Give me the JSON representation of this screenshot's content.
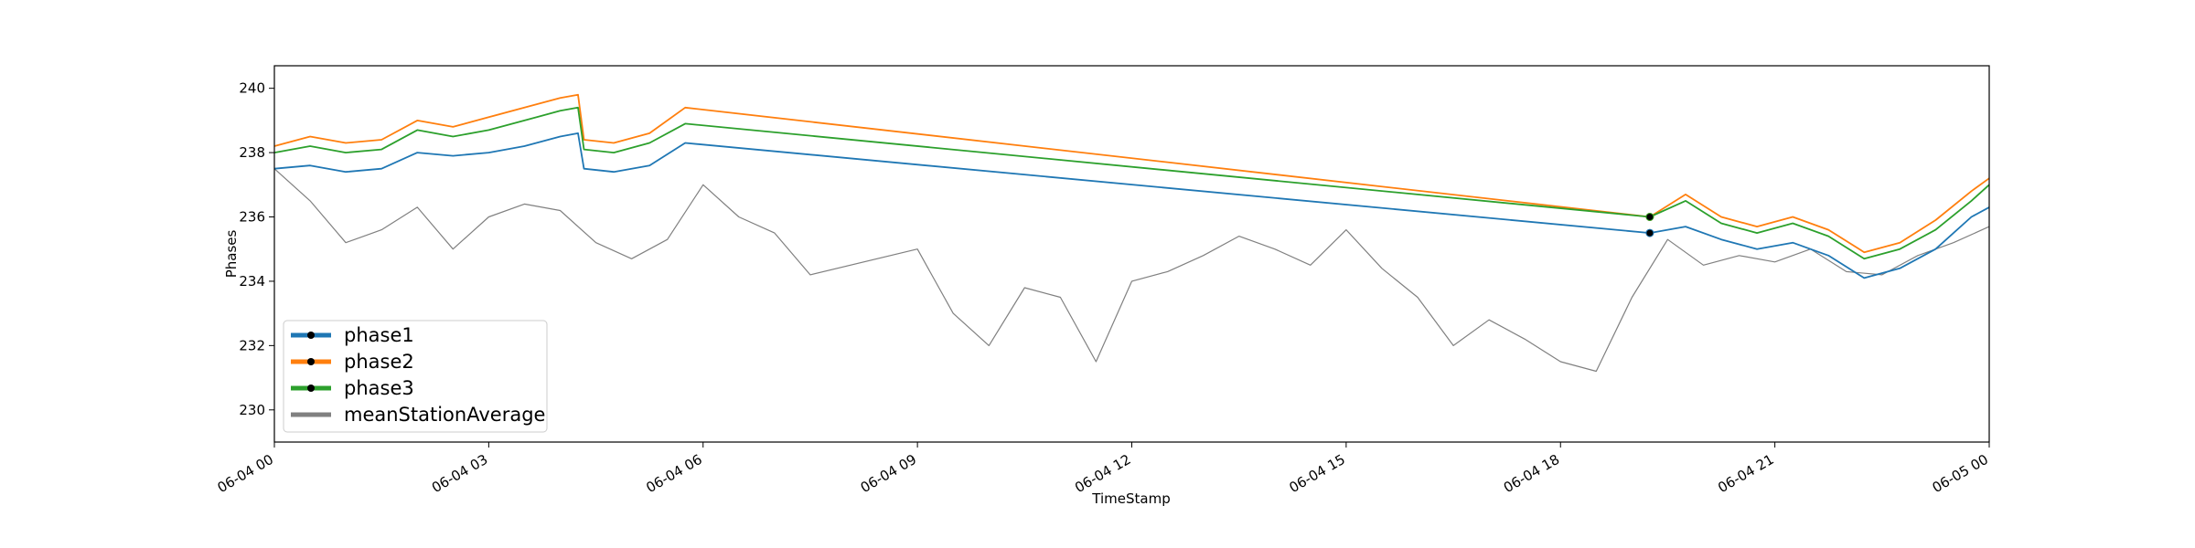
{
  "chart_data": {
    "type": "line",
    "xlabel": "TimeStamp",
    "ylabel": "Phases",
    "xlim": [
      "2024-06-04T00:00",
      "2024-06-05T00:00"
    ],
    "ylim": [
      229.0,
      240.7
    ],
    "x_ticks": [
      {
        "t": "2024-06-04T00:00",
        "label": "06-04 00"
      },
      {
        "t": "2024-06-04T03:00",
        "label": "06-04 03"
      },
      {
        "t": "2024-06-04T06:00",
        "label": "06-04 06"
      },
      {
        "t": "2024-06-04T09:00",
        "label": "06-04 09"
      },
      {
        "t": "2024-06-04T12:00",
        "label": "06-04 12"
      },
      {
        "t": "2024-06-04T15:00",
        "label": "06-04 15"
      },
      {
        "t": "2024-06-04T18:00",
        "label": "06-04 18"
      },
      {
        "t": "2024-06-04T21:00",
        "label": "06-04 21"
      },
      {
        "t": "2024-06-05T00:00",
        "label": "06-05 00"
      }
    ],
    "y_ticks": [
      230,
      232,
      234,
      236,
      238,
      240
    ],
    "legend": {
      "position": "lower-left"
    },
    "series": [
      {
        "name": "phase1",
        "color": "#1f77b4",
        "marker": true,
        "points": [
          [
            "2024-06-04T00:00",
            237.5
          ],
          [
            "2024-06-04T00:30",
            237.6
          ],
          [
            "2024-06-04T01:00",
            237.4
          ],
          [
            "2024-06-04T01:30",
            237.5
          ],
          [
            "2024-06-04T02:00",
            238.0
          ],
          [
            "2024-06-04T02:30",
            237.9
          ],
          [
            "2024-06-04T03:00",
            238.0
          ],
          [
            "2024-06-04T03:30",
            238.2
          ],
          [
            "2024-06-04T04:00",
            238.5
          ],
          [
            "2024-06-04T04:15",
            238.6
          ],
          [
            "2024-06-04T04:20",
            237.5
          ],
          [
            "2024-06-04T04:45",
            237.4
          ],
          [
            "2024-06-04T05:15",
            237.6
          ],
          [
            "2024-06-04T05:45",
            238.3
          ],
          [
            "2024-06-04T19:15",
            235.5
          ],
          [
            "2024-06-04T19:45",
            235.7
          ],
          [
            "2024-06-04T20:15",
            235.3
          ],
          [
            "2024-06-04T20:45",
            235.0
          ],
          [
            "2024-06-04T21:15",
            235.2
          ],
          [
            "2024-06-04T21:45",
            234.8
          ],
          [
            "2024-06-04T22:15",
            234.1
          ],
          [
            "2024-06-04T22:45",
            234.4
          ],
          [
            "2024-06-04T23:15",
            235.0
          ],
          [
            "2024-06-04T23:45",
            236.0
          ],
          [
            "2024-06-05T00:00",
            236.3
          ]
        ]
      },
      {
        "name": "phase2",
        "color": "#ff7f0e",
        "marker": true,
        "points": [
          [
            "2024-06-04T00:00",
            238.2
          ],
          [
            "2024-06-04T00:30",
            238.5
          ],
          [
            "2024-06-04T01:00",
            238.3
          ],
          [
            "2024-06-04T01:30",
            238.4
          ],
          [
            "2024-06-04T02:00",
            239.0
          ],
          [
            "2024-06-04T02:30",
            238.8
          ],
          [
            "2024-06-04T03:00",
            239.1
          ],
          [
            "2024-06-04T03:30",
            239.4
          ],
          [
            "2024-06-04T04:00",
            239.7
          ],
          [
            "2024-06-04T04:15",
            239.8
          ],
          [
            "2024-06-04T04:20",
            238.4
          ],
          [
            "2024-06-04T04:45",
            238.3
          ],
          [
            "2024-06-04T05:15",
            238.6
          ],
          [
            "2024-06-04T05:45",
            239.4
          ],
          [
            "2024-06-04T19:15",
            236.0
          ],
          [
            "2024-06-04T19:45",
            236.7
          ],
          [
            "2024-06-04T20:15",
            236.0
          ],
          [
            "2024-06-04T20:45",
            235.7
          ],
          [
            "2024-06-04T21:15",
            236.0
          ],
          [
            "2024-06-04T21:45",
            235.6
          ],
          [
            "2024-06-04T22:15",
            234.9
          ],
          [
            "2024-06-04T22:45",
            235.2
          ],
          [
            "2024-06-04T23:15",
            235.9
          ],
          [
            "2024-06-04T23:45",
            236.8
          ],
          [
            "2024-06-05T00:00",
            237.2
          ]
        ]
      },
      {
        "name": "phase3",
        "color": "#2ca02c",
        "marker": true,
        "points": [
          [
            "2024-06-04T00:00",
            238.0
          ],
          [
            "2024-06-04T00:30",
            238.2
          ],
          [
            "2024-06-04T01:00",
            238.0
          ],
          [
            "2024-06-04T01:30",
            238.1
          ],
          [
            "2024-06-04T02:00",
            238.7
          ],
          [
            "2024-06-04T02:30",
            238.5
          ],
          [
            "2024-06-04T03:00",
            238.7
          ],
          [
            "2024-06-04T03:30",
            239.0
          ],
          [
            "2024-06-04T04:00",
            239.3
          ],
          [
            "2024-06-04T04:15",
            239.4
          ],
          [
            "2024-06-04T04:20",
            238.1
          ],
          [
            "2024-06-04T04:45",
            238.0
          ],
          [
            "2024-06-04T05:15",
            238.3
          ],
          [
            "2024-06-04T05:45",
            238.9
          ],
          [
            "2024-06-04T19:15",
            236.0
          ],
          [
            "2024-06-04T19:45",
            236.5
          ],
          [
            "2024-06-04T20:15",
            235.8
          ],
          [
            "2024-06-04T20:45",
            235.5
          ],
          [
            "2024-06-04T21:15",
            235.8
          ],
          [
            "2024-06-04T21:45",
            235.4
          ],
          [
            "2024-06-04T22:15",
            234.7
          ],
          [
            "2024-06-04T22:45",
            235.0
          ],
          [
            "2024-06-04T23:15",
            235.6
          ],
          [
            "2024-06-04T23:45",
            236.5
          ],
          [
            "2024-06-05T00:00",
            237.0
          ]
        ]
      },
      {
        "name": "meanStationAverage",
        "color": "#808080",
        "marker": false,
        "points": [
          [
            "2024-06-04T00:00",
            237.5
          ],
          [
            "2024-06-04T00:30",
            236.5
          ],
          [
            "2024-06-04T01:00",
            235.2
          ],
          [
            "2024-06-04T01:30",
            235.6
          ],
          [
            "2024-06-04T02:00",
            236.3
          ],
          [
            "2024-06-04T02:30",
            235.0
          ],
          [
            "2024-06-04T03:00",
            236.0
          ],
          [
            "2024-06-04T03:30",
            236.4
          ],
          [
            "2024-06-04T04:00",
            236.2
          ],
          [
            "2024-06-04T04:30",
            235.2
          ],
          [
            "2024-06-04T05:00",
            234.7
          ],
          [
            "2024-06-04T05:30",
            235.3
          ],
          [
            "2024-06-04T06:00",
            237.0
          ],
          [
            "2024-06-04T06:30",
            236.0
          ],
          [
            "2024-06-04T07:00",
            235.5
          ],
          [
            "2024-06-04T07:30",
            234.2
          ],
          [
            "2024-06-04T09:00",
            235.0
          ],
          [
            "2024-06-04T09:30",
            233.0
          ],
          [
            "2024-06-04T10:00",
            232.0
          ],
          [
            "2024-06-04T10:30",
            233.8
          ],
          [
            "2024-06-04T11:00",
            233.5
          ],
          [
            "2024-06-04T11:30",
            231.5
          ],
          [
            "2024-06-04T12:00",
            234.0
          ],
          [
            "2024-06-04T12:30",
            234.3
          ],
          [
            "2024-06-04T13:00",
            234.8
          ],
          [
            "2024-06-04T13:30",
            235.4
          ],
          [
            "2024-06-04T14:00",
            235.0
          ],
          [
            "2024-06-04T14:30",
            234.5
          ],
          [
            "2024-06-04T15:00",
            235.6
          ],
          [
            "2024-06-04T15:30",
            234.4
          ],
          [
            "2024-06-04T16:00",
            233.5
          ],
          [
            "2024-06-04T16:30",
            232.0
          ],
          [
            "2024-06-04T17:00",
            232.8
          ],
          [
            "2024-06-04T17:30",
            232.2
          ],
          [
            "2024-06-04T18:00",
            231.5
          ],
          [
            "2024-06-04T18:30",
            231.2
          ],
          [
            "2024-06-04T19:00",
            233.5
          ],
          [
            "2024-06-04T19:30",
            235.3
          ],
          [
            "2024-06-04T20:00",
            234.5
          ],
          [
            "2024-06-04T20:30",
            234.8
          ],
          [
            "2024-06-04T21:00",
            234.6
          ],
          [
            "2024-06-04T21:30",
            235.0
          ],
          [
            "2024-06-04T22:00",
            234.3
          ],
          [
            "2024-06-04T22:30",
            234.2
          ],
          [
            "2024-06-04T23:00",
            234.8
          ],
          [
            "2024-06-04T23:30",
            235.2
          ],
          [
            "2024-06-05T00:00",
            235.7
          ]
        ]
      }
    ]
  }
}
